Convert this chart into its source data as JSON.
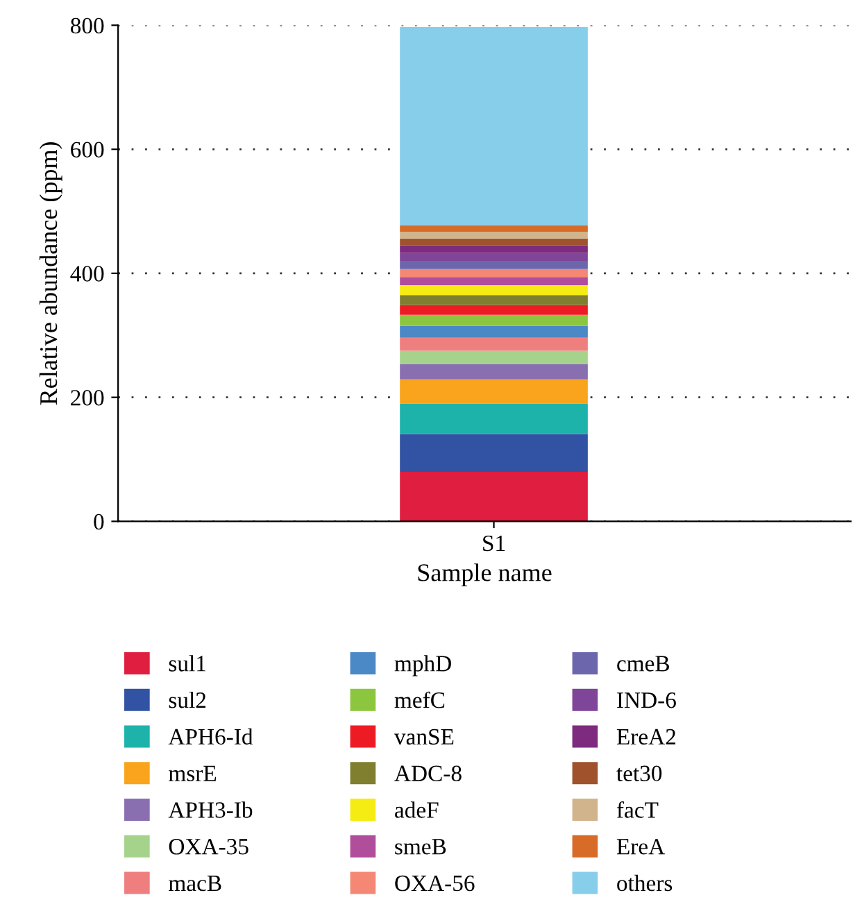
{
  "chart_data": {
    "type": "bar",
    "stacked": true,
    "xlabel": "Sample name",
    "ylabel": "Relative abundance (ppm)",
    "categories": [
      "S1"
    ],
    "ylim": [
      0,
      800
    ],
    "yticks": [
      0,
      200,
      400,
      600,
      800
    ],
    "grid": "y",
    "legend": "bottom",
    "series": [
      {
        "name": "sul1",
        "color": "#e01e3f",
        "values": [
          80
        ]
      },
      {
        "name": "sul2",
        "color": "#3253a3",
        "values": [
          61
        ]
      },
      {
        "name": "APH6-Id",
        "color": "#1db3aa",
        "values": [
          49
        ]
      },
      {
        "name": "msrE",
        "color": "#f9a41c",
        "values": [
          39
        ]
      },
      {
        "name": "APH3-Ib",
        "color": "#8a6fb0",
        "values": [
          25
        ]
      },
      {
        "name": "OXA-35",
        "color": "#a5d38b",
        "values": [
          21
        ]
      },
      {
        "name": "macB",
        "color": "#ef7f7f",
        "values": [
          21
        ]
      },
      {
        "name": "mphD",
        "color": "#4b88c6",
        "values": [
          19
        ]
      },
      {
        "name": "mefC",
        "color": "#8cc63f",
        "values": [
          18
        ]
      },
      {
        "name": "vanSE",
        "color": "#ed1c24",
        "values": [
          16
        ]
      },
      {
        "name": "ADC-8",
        "color": "#7f7f2f",
        "values": [
          16
        ]
      },
      {
        "name": "adeF",
        "color": "#f5ec13",
        "values": [
          16
        ]
      },
      {
        "name": "smeB",
        "color": "#b04e9c",
        "values": [
          13
        ]
      },
      {
        "name": "OXA-56",
        "color": "#f58775",
        "values": [
          13
        ]
      },
      {
        "name": "cmeB",
        "color": "#6c66ac",
        "values": [
          13
        ]
      },
      {
        "name": "IND-6",
        "color": "#7e4598",
        "values": [
          13
        ]
      },
      {
        "name": "EreA2",
        "color": "#7d2a7f",
        "values": [
          12
        ]
      },
      {
        "name": "tet30",
        "color": "#a0522d",
        "values": [
          11
        ]
      },
      {
        "name": "facT",
        "color": "#d2b48c",
        "values": [
          11
        ]
      },
      {
        "name": "EreA",
        "color": "#d86b27",
        "values": [
          10
        ]
      },
      {
        "name": "others",
        "color": "#87ceeb",
        "values": [
          320
        ]
      }
    ]
  }
}
